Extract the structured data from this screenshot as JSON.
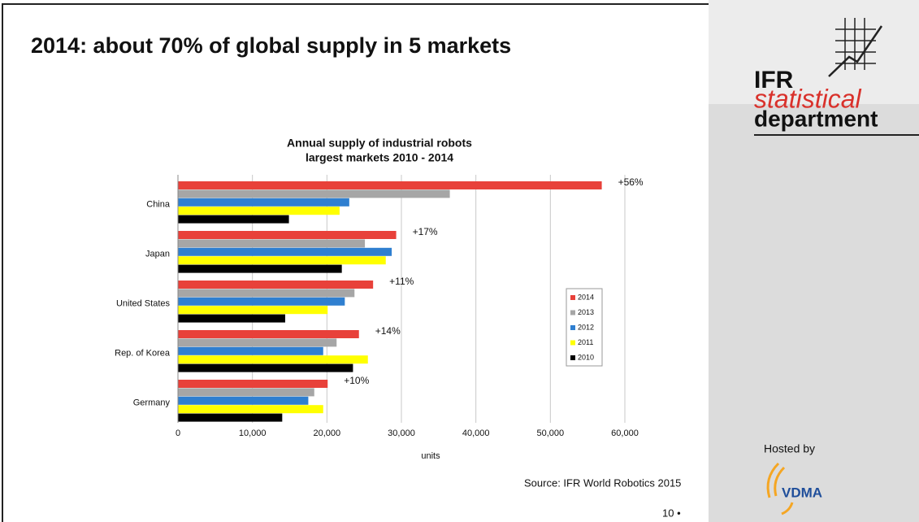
{
  "slide": {
    "title": "2014: about 70% of global supply in 5 markets",
    "logo_ifr": "IFR",
    "logo_statistical": "statistical",
    "logo_department": "department",
    "hosted_by": "Hosted by",
    "vdma": "VDMA",
    "source": "Source: IFR World Robotics 2015",
    "page": "10 •"
  },
  "chart_data": {
    "type": "bar",
    "orientation": "horizontal",
    "title": "Annual supply of industrial robots",
    "subtitle": "largest markets 2010 - 2014",
    "x_label": "units",
    "categories": [
      "China",
      "Japan",
      "United States",
      "Rep. of Korea",
      "Germany"
    ],
    "annotations": [
      "+56%",
      "+17%",
      "+11%",
      "+14%",
      "+10%"
    ],
    "series": [
      {
        "name": "2014",
        "color": "#e8413a",
        "values": [
          56900,
          29300,
          26200,
          24300,
          20100
        ]
      },
      {
        "name": "2013",
        "color": "#a6a6a6",
        "values": [
          36500,
          25100,
          23700,
          21300,
          18300
        ]
      },
      {
        "name": "2012",
        "color": "#2f7fd0",
        "values": [
          23000,
          28700,
          22400,
          19500,
          17500
        ]
      },
      {
        "name": "2011",
        "color": "#ffff00",
        "values": [
          21700,
          27900,
          20100,
          25500,
          19500
        ]
      },
      {
        "name": "2010",
        "color": "#000000",
        "values": [
          14900,
          22000,
          14400,
          23500,
          14000
        ]
      }
    ],
    "xlim": [
      0,
      60000
    ],
    "xticks": [
      0,
      {
        "value": 10000,
        "label": "10,000"
      },
      {
        "value": 20000,
        "label": "20,000"
      },
      {
        "value": 30000,
        "label": "30,000"
      },
      {
        "value": 40000,
        "label": "40,000"
      },
      {
        "value": 50000,
        "label": "50,000"
      },
      {
        "value": 60000,
        "label": "60,000"
      }
    ],
    "grid": true
  }
}
